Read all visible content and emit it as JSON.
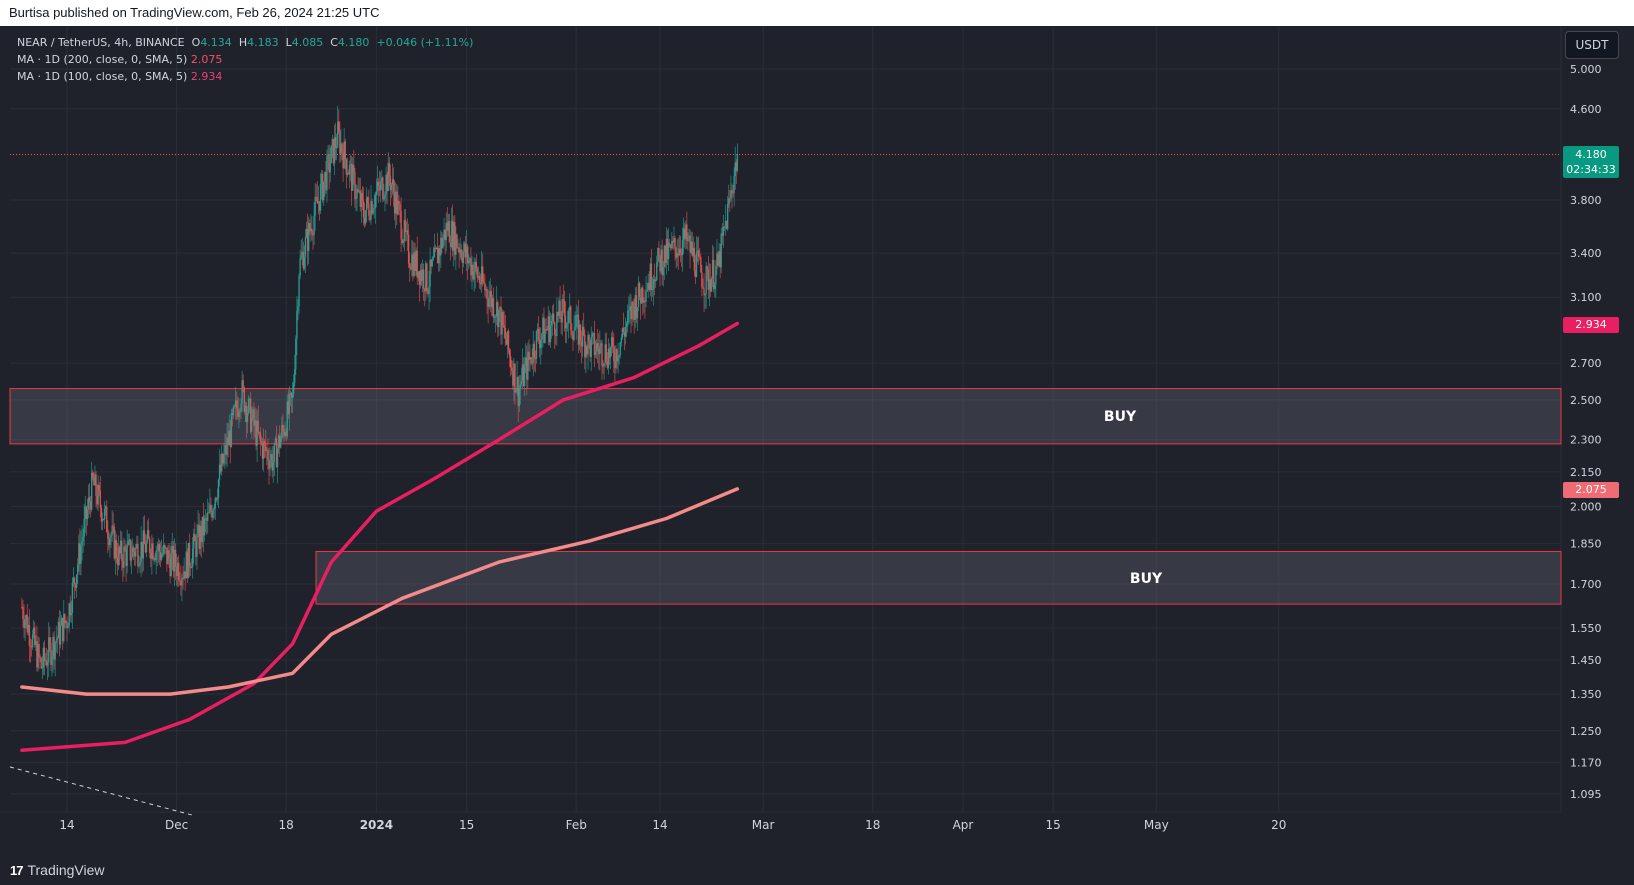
{
  "header": {
    "published_text": "Burtisa published on TradingView.com, Feb 26, 2024 21:25 UTC"
  },
  "legend": {
    "symbol": "NEAR / TetherUS, 4h, BINANCE",
    "o_label": "O",
    "o_value": "4.134",
    "h_label": "H",
    "h_value": "4.183",
    "l_label": "L",
    "l_value": "4.085",
    "c_label": "C",
    "c_value": "4.180",
    "change": "+0.046 (+1.11%)",
    "ma200_label": "MA · 1D (200, close, 0, SMA, 5)",
    "ma200_value": "2.075",
    "ma100_label": "MA · 1D (100, close, 0, SMA, 5)",
    "ma100_value": "2.934"
  },
  "currency_button": "USDT",
  "price_tags": {
    "last_price": "4.180",
    "countdown": "02:34:33",
    "ma100": "2.934",
    "ma200": "2.075"
  },
  "footer": {
    "brand": "TradingView"
  },
  "colors": {
    "background": "#1f222b",
    "up_candle": "#26a69a",
    "down_candle": "#ef5350",
    "ma100": "#e91e63",
    "ma200": "#f48a8a",
    "zone_border": "#f23645",
    "last_price_tag": "#089981"
  },
  "chart_data": {
    "type": "candlestick",
    "symbol": "NEAR / TetherUS",
    "interval": "4h",
    "exchange": "BINANCE",
    "y_axis_ticks": [
      5.0,
      4.6,
      3.8,
      3.4,
      3.1,
      2.7,
      2.5,
      2.3,
      2.15,
      2.0,
      1.85,
      1.7,
      1.55,
      1.45,
      1.35,
      1.25,
      1.17,
      1.095
    ],
    "y_axis_tick_labels": [
      "5.000",
      "4.600",
      "3.800",
      "3.400",
      "3.100",
      "2.700",
      "2.500",
      "2.300",
      "2.150",
      "2.000",
      "1.850",
      "1.700",
      "1.550",
      "1.450",
      "1.350",
      "1.250",
      "1.170",
      "1.095"
    ],
    "y_scale": "log",
    "x_axis_labels": [
      "14",
      "Dec",
      "18",
      "2024",
      "15",
      "Feb",
      "14",
      "Mar",
      "18",
      "Apr",
      "15",
      "May",
      "20"
    ],
    "price_path": [
      {
        "date": "2023-11-07",
        "close": 1.62
      },
      {
        "date": "2023-11-10",
        "close": 1.43
      },
      {
        "date": "2023-11-14",
        "close": 1.58
      },
      {
        "date": "2023-11-18",
        "close": 2.1
      },
      {
        "date": "2023-11-22",
        "close": 1.8
      },
      {
        "date": "2023-11-27",
        "close": 1.85
      },
      {
        "date": "2023-12-02",
        "close": 1.75
      },
      {
        "date": "2023-12-06",
        "close": 1.95
      },
      {
        "date": "2023-12-11",
        "close": 2.55
      },
      {
        "date": "2023-12-14",
        "close": 2.28
      },
      {
        "date": "2023-12-16",
        "close": 2.2
      },
      {
        "date": "2023-12-19",
        "close": 2.5
      },
      {
        "date": "2023-12-20",
        "close": 3.3
      },
      {
        "date": "2023-12-23",
        "close": 3.8
      },
      {
        "date": "2023-12-26",
        "close": 4.35
      },
      {
        "date": "2023-12-30",
        "close": 3.7
      },
      {
        "date": "2024-01-03",
        "close": 4.0
      },
      {
        "date": "2024-01-06",
        "close": 3.4
      },
      {
        "date": "2024-01-09",
        "close": 3.2
      },
      {
        "date": "2024-01-12",
        "close": 3.6
      },
      {
        "date": "2024-01-16",
        "close": 3.3
      },
      {
        "date": "2024-01-20",
        "close": 3.0
      },
      {
        "date": "2024-01-23",
        "close": 2.55
      },
      {
        "date": "2024-01-26",
        "close": 2.85
      },
      {
        "date": "2024-01-30",
        "close": 3.0
      },
      {
        "date": "2024-02-03",
        "close": 2.8
      },
      {
        "date": "2024-02-07",
        "close": 2.75
      },
      {
        "date": "2024-02-10",
        "close": 3.05
      },
      {
        "date": "2024-02-14",
        "close": 3.35
      },
      {
        "date": "2024-02-18",
        "close": 3.5
      },
      {
        "date": "2024-02-21",
        "close": 3.2
      },
      {
        "date": "2024-02-23",
        "close": 3.3
      },
      {
        "date": "2024-02-25",
        "close": 3.85
      },
      {
        "date": "2024-02-26",
        "close": 4.18
      }
    ],
    "series": [
      {
        "name": "MA · 1D (100, close, 0, SMA, 5)",
        "points": [
          {
            "date": "2023-11-07",
            "value": 1.2
          },
          {
            "date": "2023-11-23",
            "value": 1.22
          },
          {
            "date": "2023-12-03",
            "value": 1.28
          },
          {
            "date": "2023-12-13",
            "value": 1.38
          },
          {
            "date": "2023-12-19",
            "value": 1.5
          },
          {
            "date": "2023-12-25",
            "value": 1.78
          },
          {
            "date": "2024-01-01",
            "value": 1.98
          },
          {
            "date": "2024-01-10",
            "value": 2.12
          },
          {
            "date": "2024-01-20",
            "value": 2.3
          },
          {
            "date": "2024-01-30",
            "value": 2.5
          },
          {
            "date": "2024-02-10",
            "value": 2.62
          },
          {
            "date": "2024-02-20",
            "value": 2.8
          },
          {
            "date": "2024-02-26",
            "value": 2.934
          }
        ]
      },
      {
        "name": "MA · 1D (200, close, 0, SMA, 5)",
        "points": [
          {
            "date": "2023-11-07",
            "value": 1.37
          },
          {
            "date": "2023-11-17",
            "value": 1.35
          },
          {
            "date": "2023-11-30",
            "value": 1.35
          },
          {
            "date": "2023-12-09",
            "value": 1.37
          },
          {
            "date": "2023-12-19",
            "value": 1.41
          },
          {
            "date": "2023-12-25",
            "value": 1.53
          },
          {
            "date": "2024-01-05",
            "value": 1.65
          },
          {
            "date": "2024-01-20",
            "value": 1.78
          },
          {
            "date": "2024-02-03",
            "value": 1.86
          },
          {
            "date": "2024-02-15",
            "value": 1.95
          },
          {
            "date": "2024-02-26",
            "value": 2.075
          }
        ]
      }
    ],
    "zones": [
      {
        "label": "BUY",
        "low": 2.28,
        "high": 2.56
      },
      {
        "label": "BUY",
        "low": 1.63,
        "high": 1.82
      }
    ],
    "last_price": 4.18
  }
}
